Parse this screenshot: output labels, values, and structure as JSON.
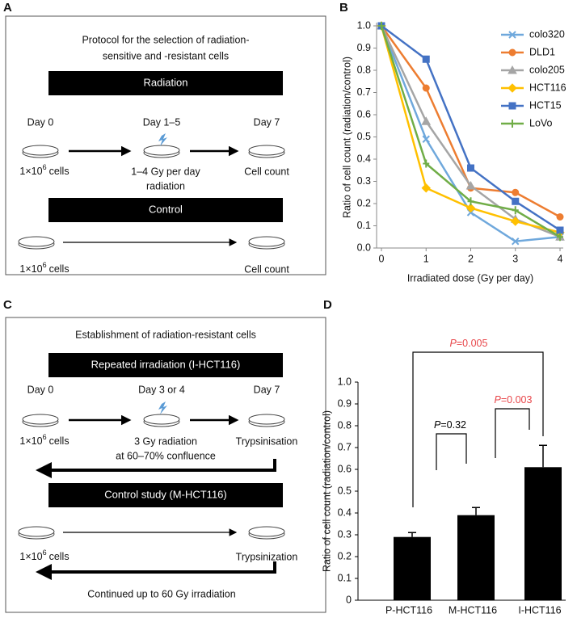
{
  "panel_labels": {
    "a": "A",
    "b": "B",
    "c": "C",
    "d": "D"
  },
  "panel_a": {
    "title": [
      "Protocol for the selection of radiation-",
      "sensitive and -resistant cells"
    ],
    "radiation": {
      "header": "Radiation",
      "days": [
        "Day 0",
        "Day 1–5",
        "Day 7"
      ],
      "cells": {
        "base": "1×10",
        "exponent": "6",
        "unit": "cells"
      },
      "treatment": [
        "1–4 Gy per day",
        "radiation"
      ],
      "endpoint": "Cell count"
    },
    "control": {
      "header": "Control",
      "cells": {
        "base": "1×10",
        "exponent": "6",
        "unit": "cells"
      },
      "endpoint": "Cell count"
    }
  },
  "panel_c": {
    "title": "Establishment of radiation-resistant cells",
    "repeated": {
      "header": "Repeated irradiation (I-HCT116)",
      "days": [
        "Day 0",
        "Day 3 or 4",
        "Day 7"
      ],
      "cells": {
        "base": "1×10",
        "exponent": "6",
        "unit": "cells"
      },
      "treatment": [
        "3 Gy radiation",
        "at 60–70% confluence"
      ],
      "endpoint": "Trypsinisation"
    },
    "control": {
      "header": "Control study (M-HCT116)",
      "cells": {
        "base": "1×10",
        "exponent": "6",
        "unit": "cells"
      },
      "endpoint": "Trypsinization"
    },
    "footer": "Continued up to 60 Gy irradiation"
  },
  "chart_data": [
    {
      "type": "line",
      "x_label": "Irradiated dose (Gy per day)",
      "y_label": "Ratio of cell count (radiation/control)",
      "x": [
        0,
        1,
        2,
        3,
        4
      ],
      "xlim": [
        0,
        4
      ],
      "xticks": [
        0,
        1,
        2,
        3,
        4
      ],
      "ylim": [
        0,
        1
      ],
      "yticks": [
        {
          "value": 0,
          "label": "0.0"
        },
        0.1,
        0.2,
        0.3,
        0.4,
        0.5,
        0.6,
        0.7,
        0.8,
        0.9,
        {
          "value": 1,
          "label": "1.0"
        }
      ],
      "legend": "top-right",
      "series": [
        {
          "name": "colo320",
          "color": "#6fa8dc",
          "marker": "x",
          "values": [
            1.0,
            0.49,
            0.16,
            0.03,
            0.05
          ]
        },
        {
          "name": "DLD1",
          "color": "#ed7d31",
          "marker": "circle",
          "values": [
            1.0,
            0.72,
            0.27,
            0.25,
            0.14
          ]
        },
        {
          "name": "colo205",
          "color": "#a5a5a5",
          "marker": "triangle",
          "values": [
            1.0,
            0.57,
            0.28,
            0.13,
            0.05
          ]
        },
        {
          "name": "HCT116",
          "color": "#ffc000",
          "marker": "diamond",
          "values": [
            1.0,
            0.27,
            0.18,
            0.12,
            0.07
          ]
        },
        {
          "name": "HCT15",
          "color": "#4472c4",
          "marker": "square",
          "values": [
            1.0,
            0.85,
            0.36,
            0.21,
            0.08
          ]
        },
        {
          "name": "LoVo",
          "color": "#70ad47",
          "marker": "plus",
          "values": [
            1.0,
            0.38,
            0.21,
            0.17,
            0.05
          ]
        }
      ]
    },
    {
      "type": "bar",
      "y_label": "Ratio of cell count (radiation/control)",
      "categories": [
        "P-HCT116",
        "M-HCT116",
        "I-HCT116"
      ],
      "values": [
        0.29,
        0.39,
        0.61
      ],
      "errors": [
        0.02,
        0.035,
        0.1
      ],
      "color": "#000000",
      "ylim": [
        0,
        1
      ],
      "yticks": [
        0,
        0.1,
        0.2,
        0.3,
        0.4,
        0.5,
        0.6,
        0.7,
        0.8,
        0.9,
        {
          "value": 1,
          "label": "1.0"
        }
      ],
      "comparisons": [
        {
          "symbol": "P",
          "text": "=0.32",
          "color": "#000000"
        },
        {
          "symbol": "P",
          "text": "=0.003",
          "color": "#e8464a"
        },
        {
          "symbol": "P",
          "text": "=0.005",
          "color": "#e8464a"
        }
      ]
    }
  ]
}
